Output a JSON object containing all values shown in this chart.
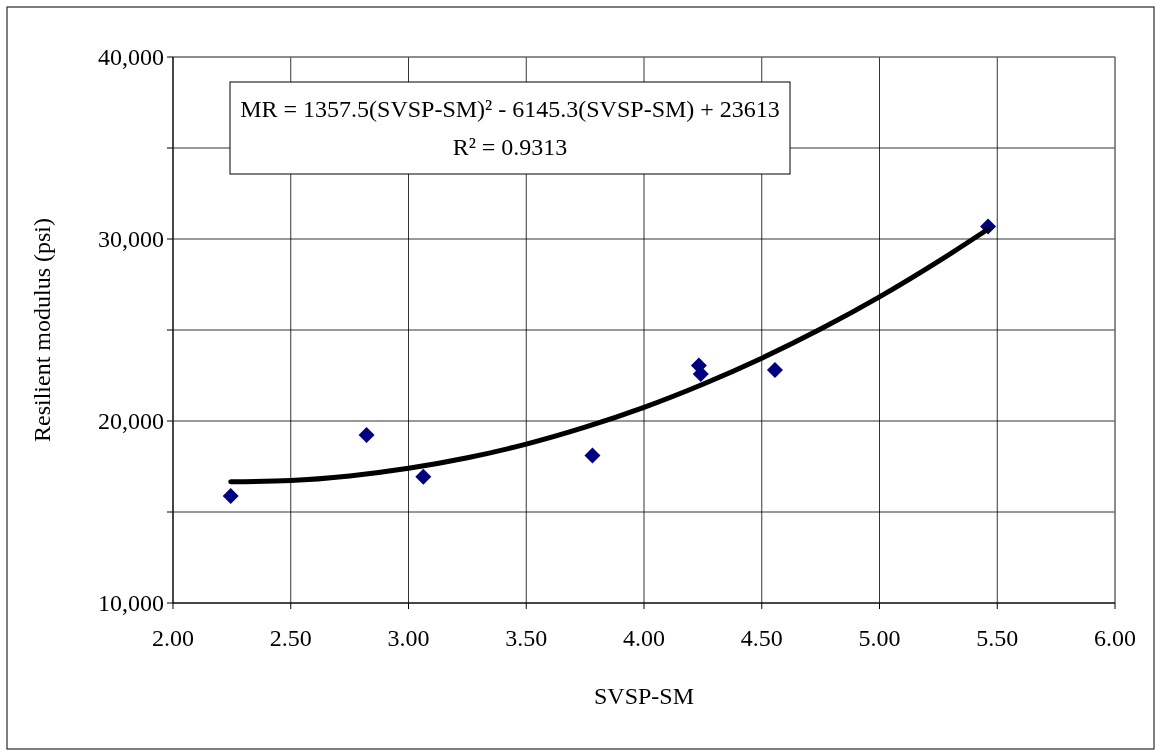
{
  "chart_data": {
    "type": "scatter",
    "xlabel": "SVSP-SM",
    "ylabel": "Resilient modulus (psi)",
    "annotations": [
      "MR = 1357.5(SVSP-SM)² - 6145.3(SVSP-SM) + 23613",
      "R² = 0.9313"
    ],
    "xlim": [
      2,
      6
    ],
    "ylim": [
      10000,
      40000
    ],
    "xticks": [
      {
        "value": 2,
        "label": "2.00"
      },
      {
        "value": 2.5,
        "label": "2.50"
      },
      {
        "value": 3,
        "label": "3.00"
      },
      {
        "value": 3.5,
        "label": "3.50"
      },
      {
        "value": 4,
        "label": "4.00"
      },
      {
        "value": 4.5,
        "label": "4.50"
      },
      {
        "value": 5,
        "label": "5.00"
      },
      {
        "value": 5.5,
        "label": "5.50"
      },
      {
        "value": 6,
        "label": "6.00"
      }
    ],
    "yticks": [
      {
        "value": 10000,
        "label": "10,000"
      },
      {
        "value": 15000,
        "label": null
      },
      {
        "value": 20000,
        "label": "20,000"
      },
      {
        "value": 25000,
        "label": null
      },
      {
        "value": 30000,
        "label": "30,000"
      },
      {
        "value": 35000,
        "label": null
      },
      {
        "value": 40000,
        "label": "40,000"
      }
    ],
    "grid": true,
    "series": [
      {
        "color": "#000080",
        "marker": "diamond",
        "x": [
          2.245,
          2.822,
          3.063,
          3.781,
          4.233,
          4.241,
          4.556,
          5.461
        ],
        "values": [
          15880,
          19230,
          16930,
          18100,
          23050,
          22580,
          22800,
          30680
        ]
      },
      {
        "type": "line",
        "color": "#000000",
        "marker": "none",
        "x": [
          2.245,
          2.5,
          2.75,
          3,
          3.25,
          3.5,
          3.75,
          4,
          4.25,
          4.5,
          4.75,
          5,
          5.25,
          5.461
        ],
        "values": [
          16660,
          16730,
          16980,
          17400,
          17980,
          18730,
          19660,
          20750,
          22020,
          23450,
          25050,
          26820,
          28770,
          30540
        ]
      }
    ]
  }
}
